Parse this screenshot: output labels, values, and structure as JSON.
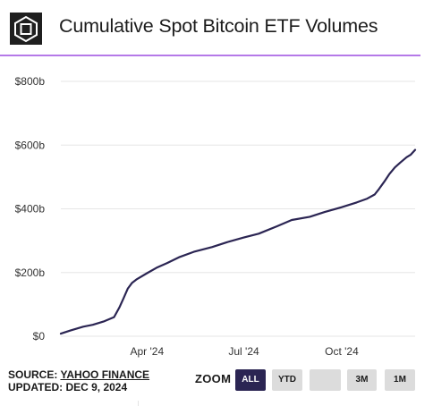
{
  "header": {
    "title": "Cumulative Spot Bitcoin ETF Volumes",
    "logo_icon": "the-block-cube-logo-icon",
    "accent_color": "#b579e8"
  },
  "chart_data": {
    "type": "line",
    "title": "Cumulative Spot Bitcoin ETF Volumes",
    "xlabel": "",
    "ylabel": "",
    "x_ticks": [
      "Apr '24",
      "Jul '24",
      "Oct '24"
    ],
    "y_ticks": [
      "$0",
      "$200b",
      "$400b",
      "$600b",
      "$800b"
    ],
    "y_tick_values": [
      0,
      200,
      400,
      600,
      800
    ],
    "ylim": [
      0,
      800
    ],
    "xlim": [
      "2024-01-11",
      "2024-12-09"
    ],
    "grid": true,
    "line_color": "#2b2553",
    "series": [
      {
        "x": [
          "2024-01-11",
          "2024-01-20",
          "2024-02-01",
          "2024-02-10",
          "2024-02-20",
          "2024-03-01",
          "2024-03-06",
          "2024-03-10",
          "2024-03-14",
          "2024-03-18",
          "2024-03-22",
          "2024-04-01",
          "2024-04-10",
          "2024-04-20",
          "2024-05-01",
          "2024-05-15",
          "2024-06-01",
          "2024-06-15",
          "2024-07-01",
          "2024-07-15",
          "2024-08-01",
          "2024-08-15",
          "2024-09-01",
          "2024-09-15",
          "2024-10-01",
          "2024-10-15",
          "2024-10-25",
          "2024-11-01",
          "2024-11-05",
          "2024-11-10",
          "2024-11-15",
          "2024-11-20",
          "2024-11-25",
          "2024-12-01",
          "2024-12-05",
          "2024-12-09"
        ],
        "y": [
          8,
          18,
          30,
          36,
          46,
          60,
          90,
          120,
          150,
          168,
          178,
          198,
          215,
          230,
          248,
          265,
          280,
          295,
          310,
          322,
          345,
          365,
          375,
          390,
          405,
          420,
          432,
          445,
          462,
          485,
          510,
          530,
          545,
          562,
          570,
          585
        ]
      }
    ]
  },
  "footer": {
    "source_label": "SOURCE:",
    "source_name": "YAHOO FINANCE",
    "updated": "UPDATED: DEC 9, 2024",
    "zoom_label": "ZOOM",
    "zoom_buttons": [
      {
        "label": "ALL",
        "active": true
      },
      {
        "label": "YTD",
        "active": false
      },
      {
        "label": "",
        "active": false
      },
      {
        "label": "3M",
        "active": false
      },
      {
        "label": "1M",
        "active": false
      }
    ]
  }
}
